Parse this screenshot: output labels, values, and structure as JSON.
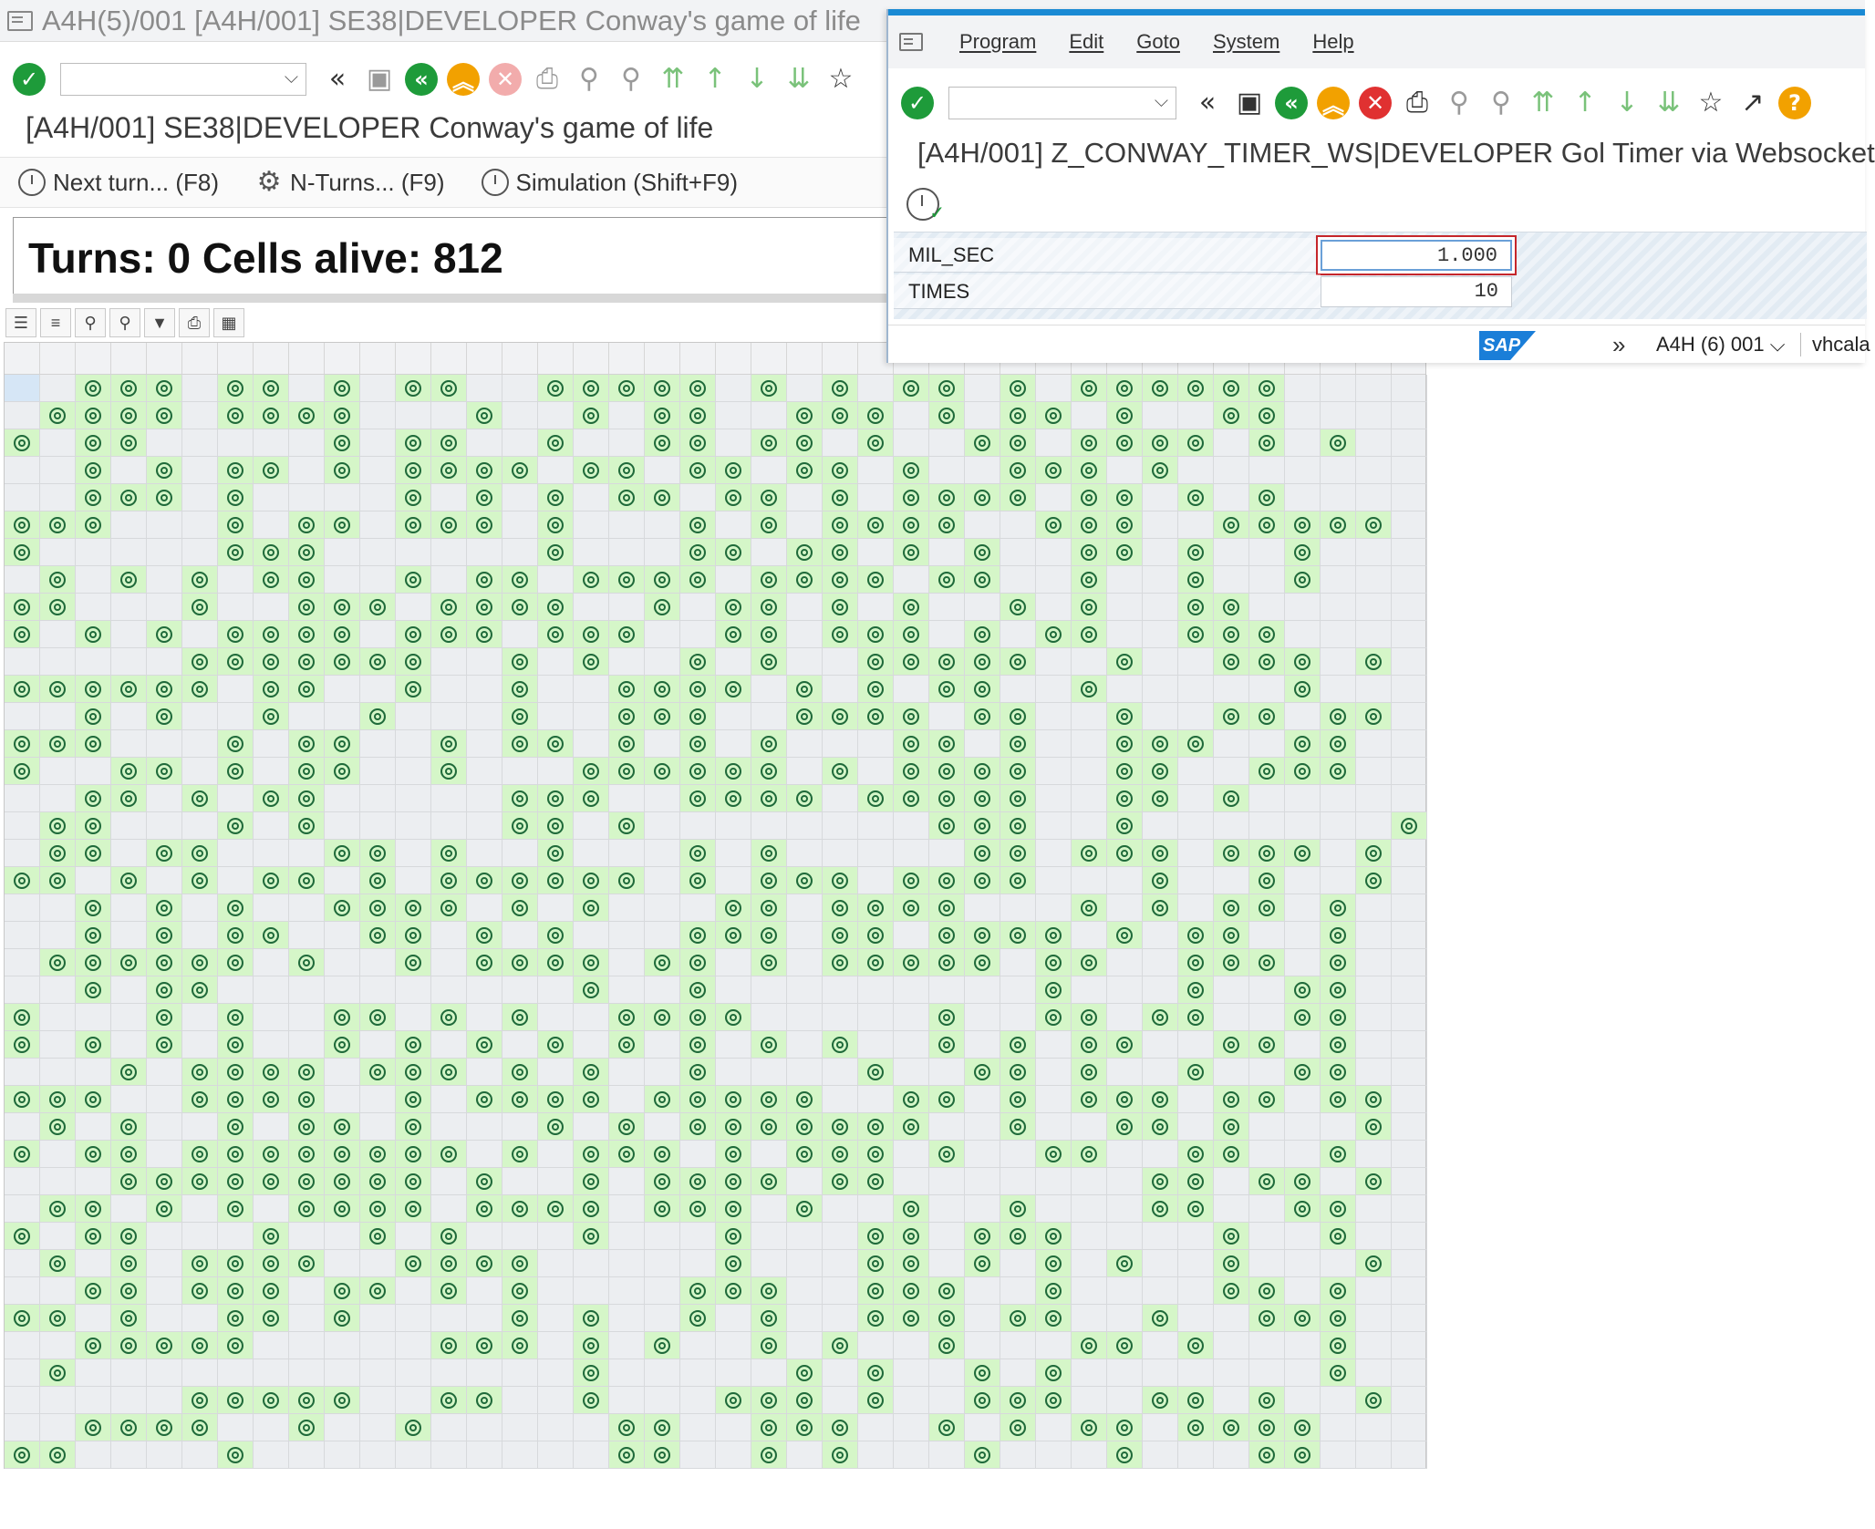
{
  "main_window": {
    "title": "A4H(5)/001 [A4H/001] SE38|DEVELOPER Conway's game of life",
    "screen_title": "[A4H/001] SE38|DEVELOPER Conway's game of life",
    "buttons": {
      "next_turn": "Next turn... (F8)",
      "n_turns": "N-Turns... (F9)",
      "simulation": "Simulation (Shift+F9)"
    },
    "stats": "Turns: 0 Cells alive: 812"
  },
  "grid": {
    "columns": 40,
    "alive_pattern": [
      "..###.##.#.##..#####.#.#.##.#.######",
      ".####.####...#..#.##..###.#.##.#..##",
      "#.##.....#.##..#..##.##.#..##.####.#.#",
      "..#.#.##.#.####.##.##.##.#..###.#",
      "..###.#....#.#.#.##.##.#.####.##.#.#",
      "###...#.##.###.#...#.#.####..###..#####",
      "#.....###......#...##.##.#.#..##.#..#",
      ".#.#.#.##..#.##.####.####.##..#..#..#",
      "##...#..###.####..#.##.#.#..#.#..##",
      "#.#.#.####.###.###..##.###.#.##..###",
      ".....#######..#.#..#.#..#####..#..###.#",
      "######.##..#..#..####.#.#.##..#.....#",
      "..#.#..#..#...#..###..####.##..#..##.##",
      "###...#.##..#.##.#.#.#...##.#..###..##",
      "#..##.#.##..#...######.#.####..##..###",
      "..##.#.##.....###..####.#####..##.#..",
      ".##...#.#.....##.#........###..#.......#",
      ".##.##...##.#..#...#.#.....##.###.###.#",
      "##.#.#.##.#.######.#.###.####...#..#..#",
      "..#.#.#..####.#.#...##.####...#.#.##.#",
      "..#.#.##..##.#.#...###.##.####.#.##..#",
      ".######.#..#.####.##.#.#####.##..###.#",
      "..#.##..........#..#.........#...#..##",
      "#...#.#..##.#.#..####.....#..##.##..##",
      "#.#.#.#..#.#.#.#.#.#.#.#..#.#.##..##.#",
      "...#.####.###.#.#..#....#..##.#..#..##",
      "###..####..#.####.#####..##.#.###.##.##",
      ".#.#..#.##.#...#.#.#######..#..##.#...#",
      "#.##.########.#.###.#.###.#..##..##..#",
      "...#########.#..#.####.##.......##.##.#",
      ".##.#.#.####.####.###.#..#..#...##..##",
      "#.##...#..#.#...#...#...##.###....#..#",
      ".#.#.####..####.....#...##.#.#.#..#...#",
      "..##.###.##.#.#....###..###..#....##.#",
      "##.#..##.#....#.#..#.#..###.##..#..###",
      "..#####.....###.#.#..#.#..#...##.#...#",
      ".#..............#.....#.#..#.#.......#",
      ".....#####..##..#...###.#..###..##.#..#",
      "..####..#..#.....##..###..#.#.##.####",
      "##....#..........##..#.#...#...#...##"
    ]
  },
  "popup": {
    "menu": [
      "Program",
      "Edit",
      "Goto",
      "System",
      "Help"
    ],
    "title": "[A4H/001] Z_CONWAY_TIMER_WS|DEVELOPER Gol Timer via Websocket",
    "fields": [
      {
        "label": "MIL_SEC",
        "value": "1.000"
      },
      {
        "label": "TIMES",
        "value": "10"
      }
    ],
    "status": {
      "logo": "SAP",
      "system": "A4H (6) 001",
      "host": "vhcala"
    }
  },
  "colors": {
    "alive_cell": "#d5f6c8",
    "dead_cell": "#eceef1",
    "accent": "#1a8ad4",
    "ok_green": "#1e9b3a"
  }
}
